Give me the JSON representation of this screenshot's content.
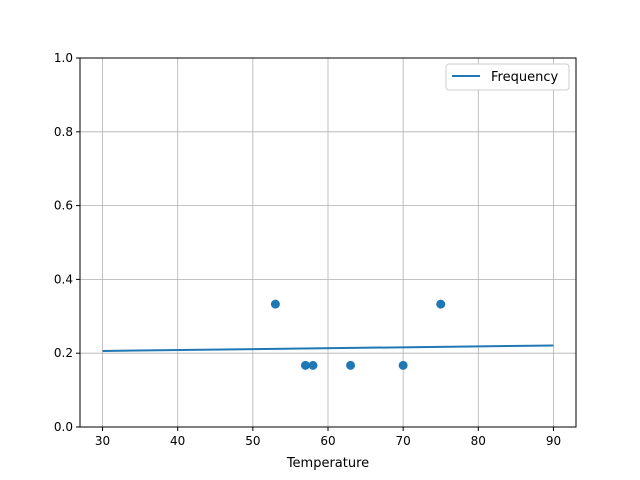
{
  "chart_data": {
    "type": "scatter",
    "title": "",
    "xlabel": "Temperature",
    "ylabel": "",
    "xlim": [
      27,
      93
    ],
    "ylim": [
      0,
      1.0
    ],
    "xticks": [
      30,
      40,
      50,
      60,
      70,
      80,
      90
    ],
    "yticks": [
      0.0,
      0.2,
      0.4,
      0.6,
      0.8,
      1.0
    ],
    "xtick_labels": [
      "30",
      "40",
      "50",
      "60",
      "70",
      "80",
      "90"
    ],
    "ytick_labels": [
      "0.0",
      "0.2",
      "0.4",
      "0.6",
      "0.8",
      "1.0"
    ],
    "grid": true,
    "legend_position": "top-right",
    "color": "#1f77b4",
    "line": {
      "name": "Frequency",
      "x": [
        30,
        90
      ],
      "y": [
        0.206,
        0.221
      ]
    },
    "points": {
      "x": [
        53,
        57,
        58,
        63,
        70,
        75
      ],
      "y": [
        0.333,
        0.167,
        0.167,
        0.167,
        0.167,
        0.333
      ]
    }
  }
}
